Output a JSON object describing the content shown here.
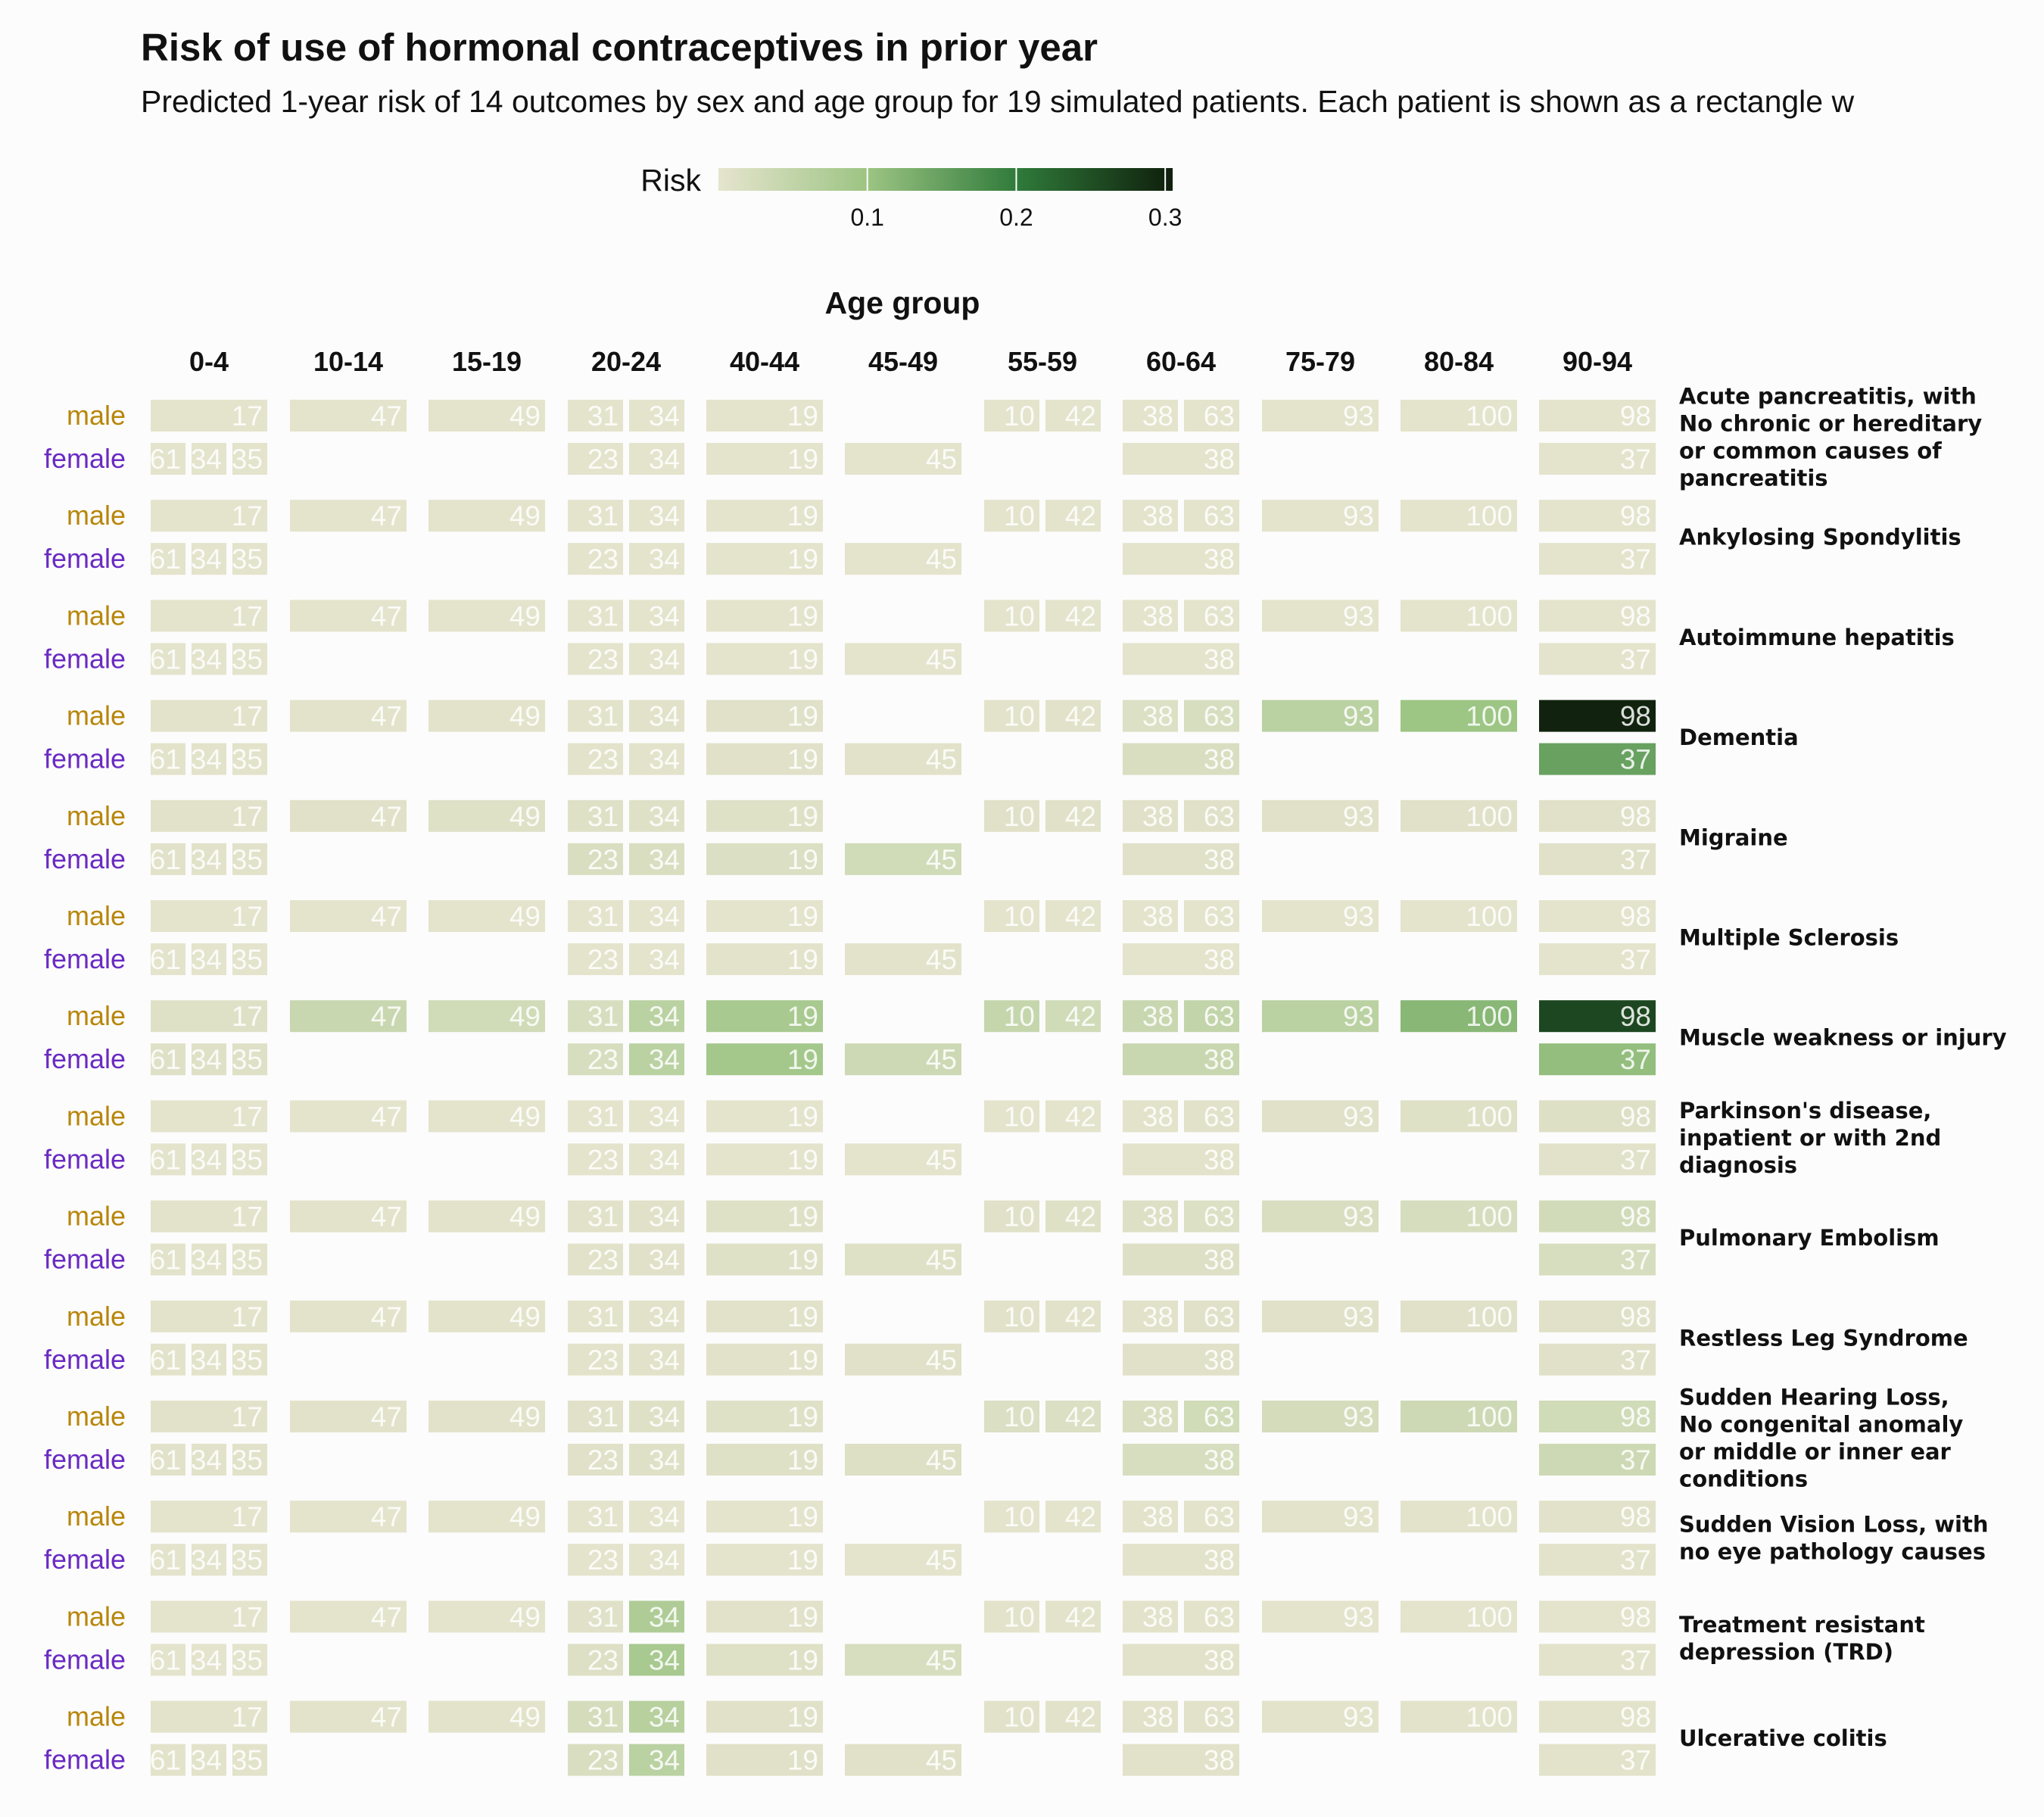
{
  "chart_data": {
    "type": "heatmap",
    "title": "Risk of use of hormonal contraceptives in prior year",
    "subtitle": "Predicted 1-year risk of 14 outcomes by sex and age group for 19 simulated patients. Each patient is shown as a rectangle w",
    "legend": {
      "title": "Risk",
      "ticks": [
        "0.1",
        "0.2",
        "0.3"
      ],
      "tick_values": [
        0.1,
        0.2,
        0.3
      ],
      "range": [
        0,
        0.305
      ],
      "colors": [
        "#e6e4ce",
        "#9cc483",
        "#2f7a3a",
        "#0f1f0c"
      ],
      "placement": "top"
    },
    "xlabel": "Age group",
    "age_groups": [
      "0-4",
      "10-14",
      "15-19",
      "20-24",
      "40-44",
      "45-49",
      "55-59",
      "60-64",
      "75-79",
      "80-84",
      "90-94"
    ],
    "sexes": [
      "male",
      "female"
    ],
    "sex_colors": {
      "male": "#b8860b",
      "female": "#6a2bc2"
    },
    "patients": {
      "male": [
        [
          "17"
        ],
        [
          "47"
        ],
        [
          "49"
        ],
        [
          "31",
          "34"
        ],
        [
          "19"
        ],
        [],
        [
          "10",
          "42"
        ],
        [
          "38",
          "63"
        ],
        [
          "93"
        ],
        [
          "100"
        ],
        [
          "98"
        ]
      ],
      "female": [
        [
          "61",
          "34",
          "35"
        ],
        [],
        [],
        [
          "23",
          "34"
        ],
        [
          "19"
        ],
        [
          "45"
        ],
        [],
        [
          "38"
        ],
        [],
        [],
        [
          "37"
        ]
      ]
    },
    "outcomes": [
      {
        "name": "Acute pancreatitis, with\nNo chronic or hereditary\nor common causes of\npancreatitis",
        "male": [
          [
            0.003
          ],
          [
            0.003
          ],
          [
            0.003
          ],
          [
            0.003,
            0.003
          ],
          [
            0.003
          ],
          [],
          [
            0.003,
            0.003
          ],
          [
            0.003,
            0.003
          ],
          [
            0.003
          ],
          [
            0.003
          ],
          [
            0.003
          ]
        ],
        "female": [
          [
            0.003,
            0.003,
            0.003
          ],
          [],
          [],
          [
            0.003,
            0.003
          ],
          [
            0.003
          ],
          [
            0.003
          ],
          [],
          [
            0.003
          ],
          [],
          [],
          [
            0.003
          ]
        ]
      },
      {
        "name": "Ankylosing Spondylitis",
        "male": [
          [
            0.003
          ],
          [
            0.003
          ],
          [
            0.003
          ],
          [
            0.003,
            0.003
          ],
          [
            0.003
          ],
          [],
          [
            0.003,
            0.003
          ],
          [
            0.003,
            0.003
          ],
          [
            0.003
          ],
          [
            0.003
          ],
          [
            0.003
          ]
        ],
        "female": [
          [
            0.003,
            0.003,
            0.003
          ],
          [],
          [],
          [
            0.003,
            0.003
          ],
          [
            0.003
          ],
          [
            0.003
          ],
          [],
          [
            0.003
          ],
          [],
          [],
          [
            0.003
          ]
        ]
      },
      {
        "name": "Autoimmune hepatitis",
        "male": [
          [
            0.003
          ],
          [
            0.003
          ],
          [
            0.003
          ],
          [
            0.003,
            0.003
          ],
          [
            0.003
          ],
          [],
          [
            0.003,
            0.003
          ],
          [
            0.003,
            0.003
          ],
          [
            0.003
          ],
          [
            0.003
          ],
          [
            0.003
          ]
        ],
        "female": [
          [
            0.003,
            0.003,
            0.003
          ],
          [],
          [],
          [
            0.003,
            0.003
          ],
          [
            0.003
          ],
          [
            0.003
          ],
          [],
          [
            0.003
          ],
          [],
          [],
          [
            0.003
          ]
        ]
      },
      {
        "name": "Dementia",
        "male": [
          [
            0.004
          ],
          [
            0.004
          ],
          [
            0.004
          ],
          [
            0.004,
            0.005
          ],
          [
            0.008
          ],
          [],
          [
            0.004,
            0.006
          ],
          [
            0.014,
            0.02
          ],
          [
            0.06
          ],
          [
            0.1
          ],
          [
            0.3
          ]
        ],
        "female": [
          [
            0.004,
            0.004,
            0.004
          ],
          [],
          [],
          [
            0.004,
            0.004
          ],
          [
            0.008
          ],
          [
            0.006
          ],
          [],
          [
            0.018
          ],
          [],
          [],
          [
            0.15
          ]
        ]
      },
      {
        "name": "Migraine",
        "male": [
          [
            0.005
          ],
          [
            0.008
          ],
          [
            0.01
          ],
          [
            0.01,
            0.01
          ],
          [
            0.01
          ],
          [],
          [
            0.008,
            0.008
          ],
          [
            0.008,
            0.008
          ],
          [
            0.008
          ],
          [
            0.008
          ],
          [
            0.008
          ]
        ],
        "female": [
          [
            0.006,
            0.006,
            0.006
          ],
          [],
          [],
          [
            0.018,
            0.018
          ],
          [
            0.015
          ],
          [
            0.03
          ],
          [],
          [
            0.008
          ],
          [],
          [],
          [
            0.008
          ]
        ]
      },
      {
        "name": "Multiple Sclerosis",
        "male": [
          [
            0.003
          ],
          [
            0.003
          ],
          [
            0.003
          ],
          [
            0.003,
            0.003
          ],
          [
            0.003
          ],
          [],
          [
            0.003,
            0.003
          ],
          [
            0.003,
            0.003
          ],
          [
            0.003
          ],
          [
            0.003
          ],
          [
            0.003
          ]
        ],
        "female": [
          [
            0.003,
            0.003,
            0.003
          ],
          [],
          [],
          [
            0.003,
            0.003
          ],
          [
            0.004
          ],
          [
            0.004
          ],
          [],
          [
            0.003
          ],
          [],
          [],
          [
            0.003
          ]
        ]
      },
      {
        "name": "Muscle weakness or injury",
        "male": [
          [
            0.01
          ],
          [
            0.04
          ],
          [
            0.03
          ],
          [
            0.02,
            0.06
          ],
          [
            0.085
          ],
          [],
          [
            0.045,
            0.03
          ],
          [
            0.04,
            0.05
          ],
          [
            0.06
          ],
          [
            0.12
          ],
          [
            0.26
          ]
        ],
        "female": [
          [
            0.01,
            0.01,
            0.01
          ],
          [],
          [],
          [
            0.02,
            0.06
          ],
          [
            0.09
          ],
          [
            0.035
          ],
          [],
          [
            0.04
          ],
          [],
          [],
          [
            0.11
          ]
        ]
      },
      {
        "name": "Parkinson's disease,\ninpatient or with 2nd\ndiagnosis",
        "male": [
          [
            0.003
          ],
          [
            0.003
          ],
          [
            0.003
          ],
          [
            0.003,
            0.003
          ],
          [
            0.003
          ],
          [],
          [
            0.003,
            0.003
          ],
          [
            0.004,
            0.005
          ],
          [
            0.008
          ],
          [
            0.009
          ],
          [
            0.012
          ]
        ],
        "female": [
          [
            0.003,
            0.003,
            0.003
          ],
          [],
          [],
          [
            0.003,
            0.003
          ],
          [
            0.003
          ],
          [
            0.003
          ],
          [],
          [
            0.004
          ],
          [],
          [],
          [
            0.007
          ]
        ]
      },
      {
        "name": "Pulmonary Embolism",
        "male": [
          [
            0.004
          ],
          [
            0.004
          ],
          [
            0.004
          ],
          [
            0.006,
            0.008
          ],
          [
            0.01
          ],
          [],
          [
            0.008,
            0.01
          ],
          [
            0.012,
            0.014
          ],
          [
            0.018
          ],
          [
            0.022
          ],
          [
            0.028
          ]
        ],
        "female": [
          [
            0.004,
            0.004,
            0.004
          ],
          [],
          [],
          [
            0.006,
            0.008
          ],
          [
            0.01
          ],
          [
            0.01
          ],
          [],
          [
            0.012
          ],
          [],
          [],
          [
            0.02
          ]
        ]
      },
      {
        "name": "Restless Leg Syndrome",
        "male": [
          [
            0.004
          ],
          [
            0.004
          ],
          [
            0.004
          ],
          [
            0.004,
            0.005
          ],
          [
            0.005
          ],
          [],
          [
            0.006,
            0.006
          ],
          [
            0.006,
            0.008
          ],
          [
            0.008
          ],
          [
            0.008
          ],
          [
            0.008
          ]
        ],
        "female": [
          [
            0.004,
            0.004,
            0.004
          ],
          [],
          [],
          [
            0.004,
            0.005
          ],
          [
            0.005
          ],
          [
            0.008
          ],
          [],
          [
            0.008
          ],
          [],
          [],
          [
            0.008
          ]
        ]
      },
      {
        "name": "Sudden Hearing Loss,\nNo congenital anomaly\nor middle or inner ear\nconditions",
        "male": [
          [
            0.005
          ],
          [
            0.006
          ],
          [
            0.006
          ],
          [
            0.008,
            0.01
          ],
          [
            0.01
          ],
          [],
          [
            0.015,
            0.015
          ],
          [
            0.018,
            0.03
          ],
          [
            0.025
          ],
          [
            0.035
          ],
          [
            0.03
          ]
        ],
        "female": [
          [
            0.005,
            0.005,
            0.005
          ],
          [],
          [],
          [
            0.008,
            0.01
          ],
          [
            0.01
          ],
          [
            0.012
          ],
          [],
          [
            0.02
          ],
          [],
          [],
          [
            0.035
          ]
        ]
      },
      {
        "name": "Sudden Vision Loss, with\nno eye pathology causes",
        "male": [
          [
            0.003
          ],
          [
            0.003
          ],
          [
            0.003
          ],
          [
            0.003,
            0.003
          ],
          [
            0.003
          ],
          [],
          [
            0.003,
            0.003
          ],
          [
            0.004,
            0.004
          ],
          [
            0.004
          ],
          [
            0.004
          ],
          [
            0.005
          ]
        ],
        "female": [
          [
            0.003,
            0.003,
            0.003
          ],
          [],
          [],
          [
            0.003,
            0.003
          ],
          [
            0.003
          ],
          [
            0.003
          ],
          [],
          [
            0.004
          ],
          [],
          [],
          [
            0.004
          ]
        ]
      },
      {
        "name": "Treatment resistant\ndepression (TRD)",
        "male": [
          [
            0.003
          ],
          [
            0.003
          ],
          [
            0.003
          ],
          [
            0.008,
            0.075
          ],
          [
            0.006
          ],
          [],
          [
            0.004,
            0.004
          ],
          [
            0.004,
            0.004
          ],
          [
            0.003
          ],
          [
            0.003
          ],
          [
            0.003
          ]
        ],
        "female": [
          [
            0.003,
            0.003,
            0.003
          ],
          [],
          [],
          [
            0.012,
            0.085
          ],
          [
            0.01
          ],
          [
            0.02
          ],
          [],
          [
            0.006
          ],
          [],
          [],
          [
            0.004
          ]
        ]
      },
      {
        "name": "Ulcerative colitis",
        "male": [
          [
            0.004
          ],
          [
            0.004
          ],
          [
            0.004
          ],
          [
            0.025,
            0.065
          ],
          [
            0.008
          ],
          [],
          [
            0.006,
            0.006
          ],
          [
            0.006,
            0.006
          ],
          [
            0.004
          ],
          [
            0.004
          ],
          [
            0.004
          ]
        ],
        "female": [
          [
            0.004,
            0.004,
            0.004
          ],
          [],
          [],
          [
            0.018,
            0.06
          ],
          [
            0.008
          ],
          [
            0.008
          ],
          [],
          [
            0.006
          ],
          [],
          [],
          [
            0.004
          ]
        ]
      }
    ]
  }
}
